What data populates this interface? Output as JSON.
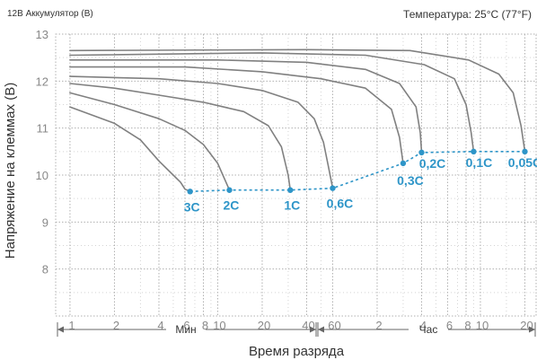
{
  "header": {
    "left_title": "12В Аккумулятор (В)",
    "right_title": "Температура: 25°C (77°F)"
  },
  "chart_data": {
    "type": "line",
    "title": "",
    "ylabel": "Напряжение на клеммах (В)",
    "xlabel": "Время разряда",
    "ylim": [
      7,
      13
    ],
    "yticks": [
      "13",
      "12",
      "11",
      "10",
      "9",
      "8"
    ],
    "xticks": [
      "1",
      "2",
      "4",
      "6",
      "8",
      "10",
      "20",
      "40",
      "60",
      "2",
      "4",
      "6",
      "8",
      "10",
      "20"
    ],
    "x_scale": "log",
    "x_units_note_min": "Мин",
    "x_units_note_hour": "Час",
    "grid": true,
    "colors": {
      "curve": "#808080",
      "accent": "#2e95c8",
      "grid": "#b0b0b0",
      "text": "#333333"
    },
    "series": [
      {
        "name": "3C",
        "points": [
          [
            1,
            11.45
          ],
          [
            2,
            11.1
          ],
          [
            3,
            10.75
          ],
          [
            4,
            10.3
          ],
          [
            5,
            10.0
          ],
          [
            5.6,
            9.85
          ],
          [
            6,
            9.7
          ],
          [
            6.5,
            9.65
          ]
        ]
      },
      {
        "name": "2C",
        "points": [
          [
            1,
            11.75
          ],
          [
            2,
            11.5
          ],
          [
            4,
            11.2
          ],
          [
            6,
            10.95
          ],
          [
            8,
            10.65
          ],
          [
            10,
            10.25
          ],
          [
            11,
            9.95
          ],
          [
            12,
            9.68
          ]
        ]
      },
      {
        "name": "1C",
        "points": [
          [
            1,
            11.95
          ],
          [
            2,
            11.85
          ],
          [
            4,
            11.7
          ],
          [
            8,
            11.55
          ],
          [
            15,
            11.35
          ],
          [
            22,
            11.05
          ],
          [
            27,
            10.6
          ],
          [
            30,
            10.0
          ],
          [
            31,
            9.68
          ]
        ]
      },
      {
        "name": "0,6C",
        "points": [
          [
            1,
            12.1
          ],
          [
            4,
            12.05
          ],
          [
            10,
            11.95
          ],
          [
            20,
            11.8
          ],
          [
            35,
            11.55
          ],
          [
            45,
            11.2
          ],
          [
            52,
            10.7
          ],
          [
            56,
            10.2
          ],
          [
            60,
            9.72
          ]
        ]
      },
      {
        "name": "0,3C",
        "points": [
          [
            1,
            12.3
          ],
          [
            6,
            12.3
          ],
          [
            20,
            12.2
          ],
          [
            50,
            12.05
          ],
          [
            100,
            11.85
          ],
          [
            150,
            11.4
          ],
          [
            170,
            10.8
          ],
          [
            180,
            10.25
          ]
        ]
      },
      {
        "name": "0,2C",
        "points": [
          [
            1,
            12.45
          ],
          [
            10,
            12.45
          ],
          [
            40,
            12.4
          ],
          [
            100,
            12.25
          ],
          [
            170,
            11.95
          ],
          [
            220,
            11.45
          ],
          [
            235,
            10.9
          ],
          [
            240,
            10.48
          ]
        ]
      },
      {
        "name": "0,1C",
        "points": [
          [
            1,
            12.55
          ],
          [
            20,
            12.6
          ],
          [
            100,
            12.55
          ],
          [
            250,
            12.35
          ],
          [
            400,
            12.05
          ],
          [
            480,
            11.5
          ],
          [
            520,
            10.9
          ],
          [
            540,
            10.5
          ]
        ]
      },
      {
        "name": "0,05C",
        "points": [
          [
            1,
            12.65
          ],
          [
            40,
            12.67
          ],
          [
            200,
            12.65
          ],
          [
            500,
            12.45
          ],
          [
            800,
            12.15
          ],
          [
            1000,
            11.75
          ],
          [
            1130,
            11.05
          ],
          [
            1200,
            10.5
          ]
        ]
      }
    ],
    "cutoff": {
      "labels": [
        "3C",
        "2C",
        "1C",
        "0,6C",
        "0,3C",
        "0,2C",
        "0,1C",
        "0,05C"
      ],
      "points": [
        [
          6.5,
          9.65
        ],
        [
          12,
          9.68
        ],
        [
          31,
          9.68
        ],
        [
          60,
          9.72
        ],
        [
          180,
          10.25
        ],
        [
          240,
          10.48
        ],
        [
          540,
          10.5
        ],
        [
          1200,
          10.5
        ]
      ]
    }
  }
}
